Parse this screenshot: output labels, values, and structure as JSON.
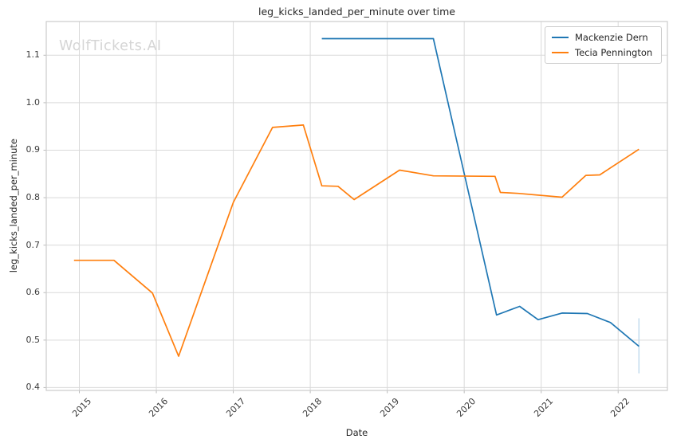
{
  "watermark": "WolfTickets.AI",
  "colors": {
    "grid": "#d9d9d9",
    "spine": "#cccccc",
    "tick": "#bbbbbb",
    "axis_text": "#3b3b3b",
    "watermark": "#d5d5d5"
  },
  "chart_data": {
    "type": "line",
    "title": "leg_kicks_landed_per_minute over time",
    "xlabel": "Date",
    "ylabel": "leg_kicks_landed_per_minute",
    "grid": true,
    "legend_position": "upper right",
    "x_ticks": [
      2015,
      2016,
      2017,
      2018,
      2019,
      2020,
      2021,
      2022
    ],
    "y_ticks": [
      0.4,
      0.5,
      0.6,
      0.7,
      0.8,
      0.9,
      1.0,
      1.1
    ],
    "x_range": [
      2014.57,
      2022.64
    ],
    "y_range": [
      0.394,
      1.171
    ],
    "series": [
      {
        "name": "Mackenzie Dern",
        "color": "#1f77b4",
        "x": [
          2018.15,
          2019.6,
          2020.42,
          2020.72,
          2020.96,
          2021.27,
          2021.6,
          2021.9,
          2022.27
        ],
        "y": [
          1.135,
          1.135,
          0.553,
          0.571,
          0.543,
          0.557,
          0.556,
          0.537,
          0.487
        ],
        "error_bar": {
          "x": 2022.27,
          "y_low": 0.43,
          "y_high": 0.546,
          "color": "#c3dcee"
        }
      },
      {
        "name": "Tecia Pennington",
        "color": "#ff7f0e",
        "x": [
          2014.93,
          2015.45,
          2015.95,
          2016.29,
          2017.0,
          2017.51,
          2017.91,
          2018.15,
          2018.36,
          2018.57,
          2019.16,
          2019.6,
          2020.4,
          2020.47,
          2020.7,
          2021.27,
          2021.58,
          2021.76,
          2022.27
        ],
        "y": [
          0.668,
          0.668,
          0.599,
          0.466,
          0.79,
          0.948,
          0.953,
          0.825,
          0.824,
          0.796,
          0.858,
          0.846,
          0.845,
          0.811,
          0.809,
          0.801,
          0.847,
          0.848,
          0.902
        ]
      }
    ]
  }
}
